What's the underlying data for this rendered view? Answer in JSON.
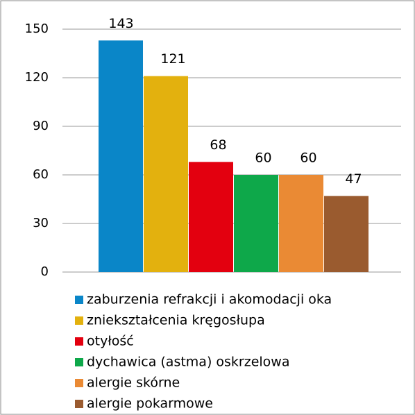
{
  "chart_data": {
    "type": "bar",
    "categories": [
      "zaburzenia refrakcji i akomodacji oka",
      "zniekształcenia kręgosłupa",
      "otyłość",
      "dychawica (astma) oskrzelowa",
      "alergie skórne",
      "alergie pokarmowe"
    ],
    "values": [
      143,
      121,
      68,
      60,
      60,
      47
    ],
    "colors": [
      "#0a86c8",
      "#e3b10e",
      "#e3000f",
      "#0ea84a",
      "#ea8a34",
      "#9a5b2f"
    ],
    "ylim": [
      0,
      150
    ],
    "yticks": [
      0,
      30,
      60,
      90,
      120,
      150
    ],
    "grid": true,
    "legend": "bottom"
  }
}
